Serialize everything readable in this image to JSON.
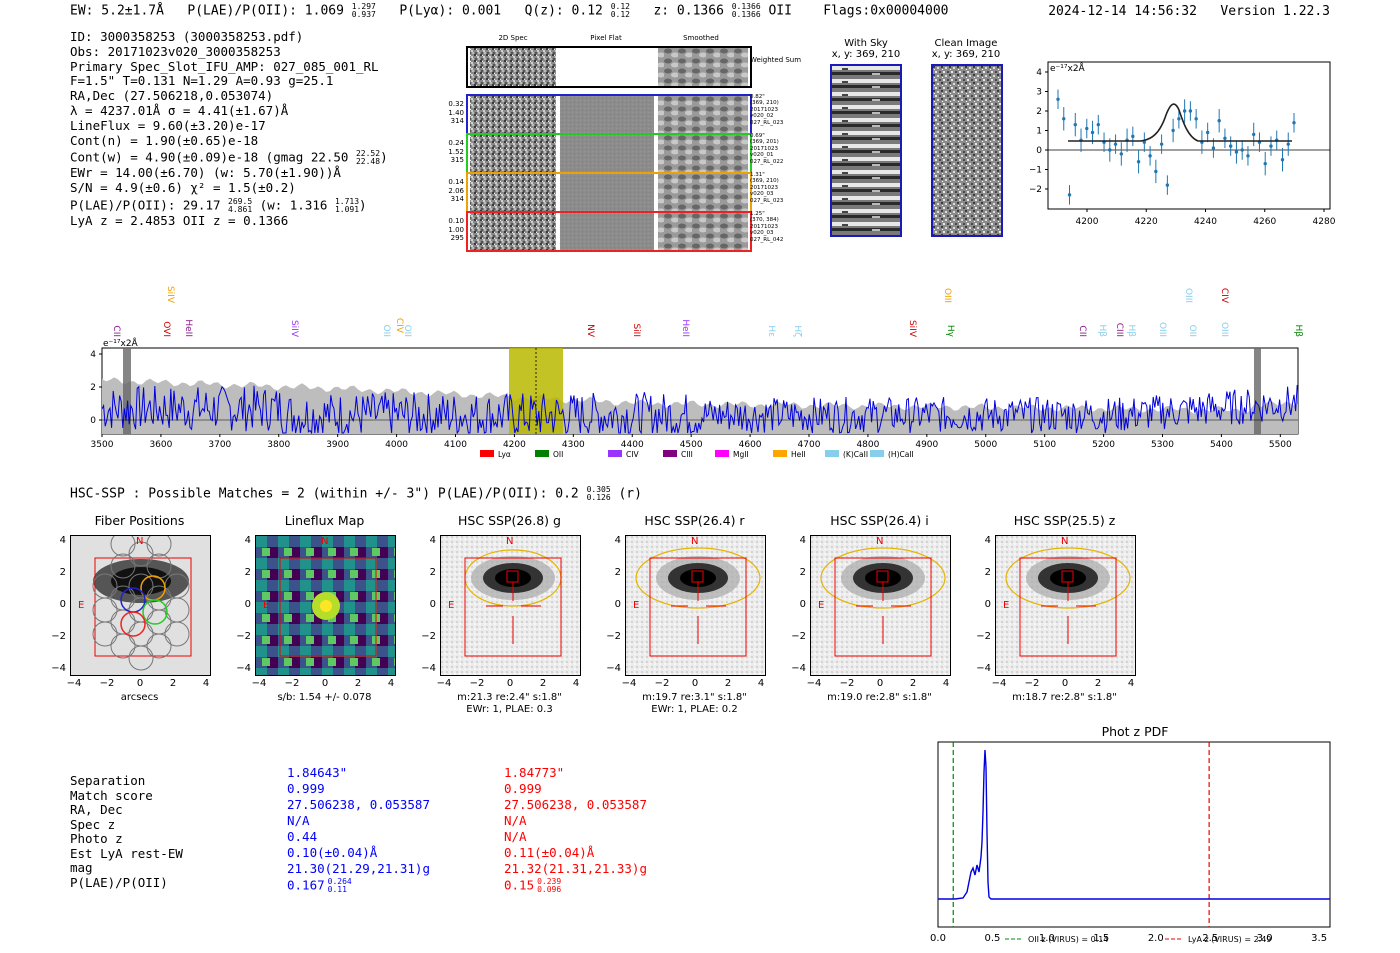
{
  "header": {
    "ew": "EW: 5.2±1.7Å",
    "plae_label": "P(LAE)/P(OII): 1.069",
    "plae_hi": "1.297",
    "plae_lo": "0.937",
    "plya": "P(Lyα): 0.001",
    "qz_label": "Q(z): 0.12",
    "qz_hi": "0.12",
    "qz_lo": "0.12",
    "z_label": "z: 0.1366",
    "z_hi": "0.1366",
    "z_lo": "0.1366",
    "z_line": "OII",
    "flags": "Flags:0x00004000",
    "datetime": "2024-12-14 14:56:32",
    "version": "Version 1.22.3"
  },
  "info": {
    "id": "ID: 3000358253 (3000358253.pdf)",
    "obs": "Obs: 20171023v020_3000358253",
    "primary": "Primary Spec_Slot_IFU_AMP: 027_085_001_RL",
    "params": "F=1.5\"  T=0.131  N=1.29  A=0.93  g=25.1",
    "radec": "RA,Dec (27.506218,0.053074)",
    "lambda": "λ = 4237.01Å  σ = 4.41(±1.67)Å",
    "lineflux": "LineFlux = 9.60(±3.20)e-17",
    "contn": "Cont(n) = 1.90(±0.65)e-18",
    "contw": "Cont(w) = 4.90(±0.09)e-18 (gmag 22.50",
    "contw_hi": "22.52",
    "contw_lo": "22.48",
    "ewr": "EWr = 14.00(±6.70) (w: 5.70(±1.90))Å",
    "sn": "S/N = 4.9(±0.6)  χ² = 1.5(±0.2)",
    "plae": "P(LAE)/P(OII): 29.17",
    "plae_hi": "269.5",
    "plae_lo": "4.861",
    "plae_w": "(w: 1.316",
    "plae_w_hi": "1.713",
    "plae_w_lo": "1.091",
    "lyaz": "LyA z = 2.4853   OII z = 0.1366"
  },
  "cutouts": {
    "col_titles": [
      "2D Spec",
      "Pixel Flat",
      "Smoothed"
    ],
    "weighted_label": "Weighted Sum",
    "fibers": [
      {
        "vals": [
          "0.32",
          "1.40",
          "314"
        ],
        "note": [
          "0.82\"",
          "(369, 210)",
          "20171023",
          "v020_02",
          "027_RL_023"
        ],
        "color": "#2222cc"
      },
      {
        "vals": [
          "0.24",
          "1.52",
          "315"
        ],
        "note": [
          "0.69\"",
          "(369, 201)",
          "20171023",
          "v020_01",
          "027_RL_022"
        ],
        "color": "#22cc22"
      },
      {
        "vals": [
          "0.14",
          "2.06",
          "314"
        ],
        "note": [
          "1.31\"",
          "(369, 210)",
          "20171023",
          "v020_03",
          "027_RL_023"
        ],
        "color": "#f0a000"
      },
      {
        "vals": [
          "0.10",
          "1.00",
          "295"
        ],
        "note": [
          "1.25\"",
          "(370, 384)",
          "20171023",
          "v020_03",
          "027_RL_042"
        ],
        "color": "#ee2222"
      }
    ]
  },
  "sky": {
    "with_sky_title": "With Sky",
    "with_sky_coords": "x, y: 369, 210",
    "clean_title": "Clean Image",
    "clean_coords": "x, y: 369, 210"
  },
  "zoom_plot": {
    "unit_label": "e⁻¹⁷x2Å",
    "x_ticks": [
      "4200",
      "4220",
      "4240",
      "4260",
      "4280"
    ],
    "y_ticks": [
      "4",
      "3",
      "2",
      "1",
      "0",
      "−1",
      "−2"
    ]
  },
  "spectrum": {
    "unit_label": "e⁻¹⁷x2Å",
    "x_ticks": [
      "3500",
      "3600",
      "3700",
      "3800",
      "3900",
      "4000",
      "4100",
      "4200",
      "4300",
      "4400",
      "4500",
      "4600",
      "4700",
      "4800",
      "4900",
      "5000",
      "5100",
      "5200",
      "5300",
      "5400",
      "5500"
    ],
    "y_ticks": [
      "4",
      "2",
      "0"
    ],
    "line_labels": [
      {
        "text": "CII",
        "color": "#8a1a8a"
      },
      {
        "text": "OVI",
        "color": "#cc0000"
      },
      {
        "text": "SiIV",
        "color": "#f0a000"
      },
      {
        "text": "HeII",
        "color": "#8a1a8a"
      },
      {
        "text": "SiIV",
        "color": "#9933ff"
      },
      {
        "text": "OII",
        "color": "#87ceeb"
      },
      {
        "text": "CIV",
        "color": "#f0a000"
      },
      {
        "text": "OII",
        "color": "#87ceeb"
      },
      {
        "text": "NV",
        "color": "#cc0000"
      },
      {
        "text": "SiII",
        "color": "#cc0000"
      },
      {
        "text": "HeII",
        "color": "#9933ff"
      },
      {
        "text": "Hε",
        "color": "#87ceeb"
      },
      {
        "text": "Hζ",
        "color": "#87ceeb"
      },
      {
        "text": "SiIV",
        "color": "#cc0000"
      },
      {
        "text": "OIII",
        "color": "#f0a000"
      },
      {
        "text": "Hγ",
        "color": "#008800"
      },
      {
        "text": "CII",
        "color": "#8a1a8a"
      },
      {
        "text": "Hβ",
        "color": "#87ceeb"
      },
      {
        "text": "CIII",
        "color": "#8a1a8a"
      },
      {
        "text": "Hβ",
        "color": "#87ceeb"
      },
      {
        "text": "OIII",
        "color": "#87ceeb"
      },
      {
        "text": "OIII",
        "color": "#87ceeb"
      },
      {
        "text": "OII",
        "color": "#87ceeb"
      },
      {
        "text": "CIV",
        "color": "#cc0000"
      },
      {
        "text": "OIII",
        "color": "#87ceeb"
      },
      {
        "text": "Hβ",
        "color": "#008800"
      }
    ],
    "legend": [
      {
        "label": "Lyα",
        "color": "#ff0000"
      },
      {
        "label": "OII",
        "color": "#008000"
      },
      {
        "label": "CIV",
        "color": "#9933ff"
      },
      {
        "label": "CIII",
        "color": "#800080"
      },
      {
        "label": "MgII",
        "color": "#ff00ff"
      },
      {
        "label": "HeII",
        "color": "#ffa500"
      },
      {
        "label": "(K)CaII",
        "color": "#87ceeb"
      },
      {
        "label": "(H)CaII",
        "color": "#87ceeb"
      }
    ]
  },
  "hsc": {
    "summary": "HSC-SSP : Possible Matches = 2 (within +/- 3\")  P(LAE)/P(OII): 0.2",
    "summary_hi": "0.305",
    "summary_lo": "0.126",
    "summary_band": "(r)",
    "stamps": [
      {
        "title": "Fiber Positions",
        "cap1": "arcsecs",
        "cap2": ""
      },
      {
        "title": "Lineflux Map",
        "cap1": "s/b: 1.54 +/- 0.078",
        "cap2": ""
      },
      {
        "title": "HSC SSP(26.8) g",
        "cap1": "m:21.3  re:2.4\"  s:1.8\"",
        "cap2": "EWr: 1, PLAE: 0.3"
      },
      {
        "title": "HSC SSP(26.4) r",
        "cap1": "m:19.7  re:3.1\"  s:1.8\"",
        "cap2": "EWr: 1, PLAE: 0.2"
      },
      {
        "title": "HSC SSP(26.4) i",
        "cap1": "m:19.0  re:2.8\"  s:1.8\"",
        "cap2": ""
      },
      {
        "title": "HSC SSP(25.5) z",
        "cap1": "m:18.7  re:2.8\"  s:1.8\"",
        "cap2": ""
      }
    ],
    "compass_n": "N",
    "compass_e": "E",
    "axis_ticks": [
      "−4",
      "−2",
      "0",
      "2",
      "4"
    ],
    "y_ticks": [
      "4",
      "2",
      "0",
      "−2",
      "−4"
    ]
  },
  "table": {
    "labels": [
      "Separation",
      "Match score",
      "RA, Dec",
      "Spec z",
      "Photo z",
      "Est LyA rest-EW",
      "mag",
      "P(LAE)/P(OII)"
    ],
    "col1": [
      "1.84643\"",
      "0.999",
      "27.506238, 0.053587",
      "N/A",
      "0.44",
      "0.10(±0.04)Å",
      "21.30(21.29,21.31)g",
      "0.167"
    ],
    "col1_hi": "0.264",
    "col1_lo": "0.11",
    "col2": [
      "1.84773\"",
      "0.999",
      "27.506238, 0.053587",
      "N/A",
      "N/A",
      "0.11(±0.04)Å",
      "21.32(21.31,21.33)g",
      "0.15"
    ],
    "col2_hi": "0.239",
    "col2_lo": "0.096"
  },
  "photz": {
    "title": "Phot z PDF",
    "x_ticks": [
      "0.0",
      "0.5",
      "1.0",
      "1.5",
      "2.0",
      "2.5",
      "3.0",
      "3.5"
    ],
    "legend_oii": "OII z (VIRUS) = 0.14",
    "legend_lya": "LyA z (VIRUS) = 2.49",
    "oii_z": 0.14,
    "lya_z": 2.49
  }
}
